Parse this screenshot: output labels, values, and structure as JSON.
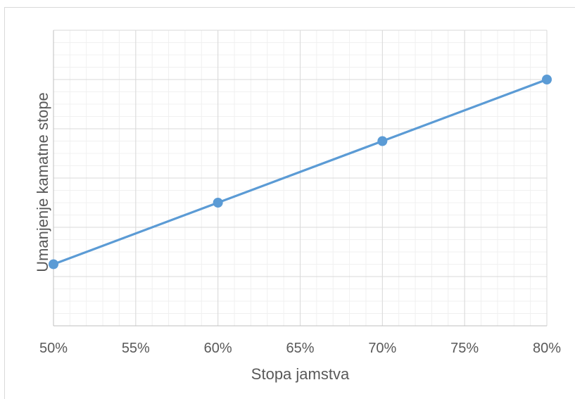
{
  "chart_data": {
    "type": "line",
    "x": [
      50,
      60,
      70,
      80
    ],
    "x_tick_labels": [
      "50%",
      "55%",
      "60%",
      "65%",
      "70%",
      "75%",
      "80%"
    ],
    "x_ticks": [
      50,
      55,
      60,
      65,
      70,
      75,
      80
    ],
    "xlim": [
      50,
      80
    ],
    "series": [
      {
        "values": [
          2.5,
          5.0,
          7.5,
          10.0
        ]
      }
    ],
    "ylim": [
      0,
      12
    ],
    "y_major_step": 2,
    "y_minor_step": 0.5,
    "x_minor_step": 1,
    "y_tick_labels_shown": false,
    "grid": true,
    "xlabel": "Stopa jamstva",
    "ylabel": "Umanjenje kamatne stope",
    "line_color": "#5b9bd5",
    "grid_major_color": "#d9d9d9",
    "grid_minor_color": "#f0f0f0",
    "axis_color": "#bfbfbf"
  }
}
